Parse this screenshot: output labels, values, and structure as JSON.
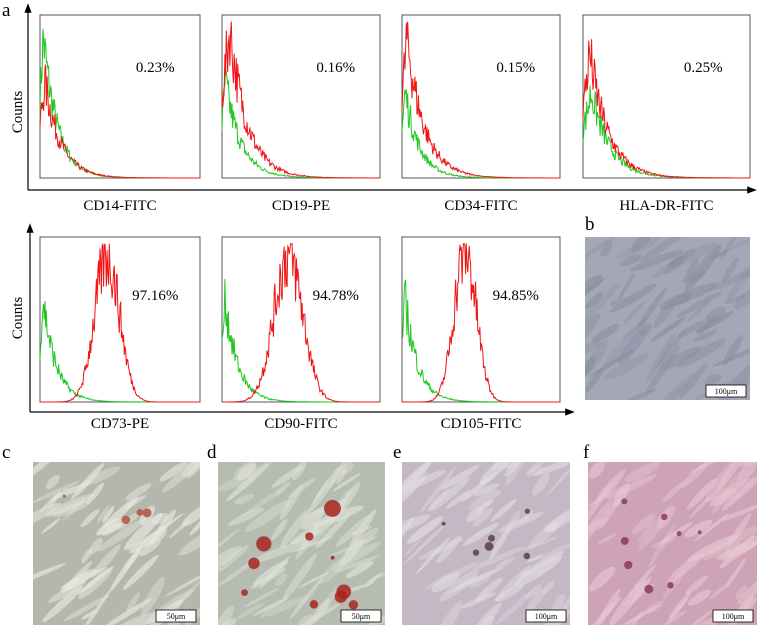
{
  "panel_a": {
    "label": "a",
    "y_axis_label": "Counts",
    "row1": [
      {
        "marker": "CD14-FITC",
        "percent": "0.23%"
      },
      {
        "marker": "CD19-PE",
        "percent": "0.16%"
      },
      {
        "marker": "CD34-FITC",
        "percent": "0.15%"
      },
      {
        "marker": "HLA-DR-FITC",
        "percent": "0.25%"
      }
    ],
    "row2": [
      {
        "marker": "CD73-PE",
        "percent": "97.16%"
      },
      {
        "marker": "CD90-FITC",
        "percent": "94.78%"
      },
      {
        "marker": "CD105-FITC",
        "percent": "94.85%"
      }
    ]
  },
  "images": [
    {
      "label": "b",
      "scale_bar": "100μm"
    },
    {
      "label": "c",
      "scale_bar": "50μm"
    },
    {
      "label": "d",
      "scale_bar": "50μm"
    },
    {
      "label": "e",
      "scale_bar": "100μm"
    },
    {
      "label": "f",
      "scale_bar": "100μm"
    }
  ]
}
